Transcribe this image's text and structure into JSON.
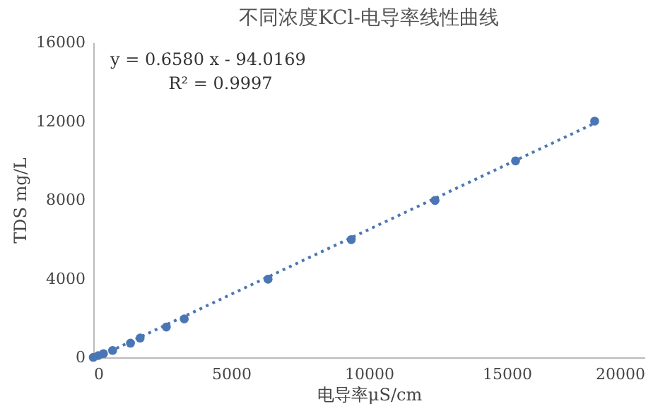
{
  "chart_data": {
    "type": "scatter",
    "title": "不同浓度KCl-电导率线性曲线",
    "xlabel": "电导率μS/cm",
    "ylabel": "TDS mg/L",
    "x": [
      0,
      180,
      370,
      700,
      1350,
      1700,
      2650,
      3300,
      6340,
      9360,
      12400,
      15320,
      18190
    ],
    "series": [
      {
        "color": "#4a76b5",
        "marker": "circle",
        "values": [
          0,
          90,
          190,
          350,
          720,
          980,
          1540,
          1950,
          3970,
          5980,
          7970,
          9980,
          12000
        ]
      },
      {
        "type": "line",
        "color": "#4a76b5",
        "x": [
          143,
          18200
        ],
        "values": [
          0,
          11900
        ],
        "line_style": "dotted"
      }
    ],
    "xlim": [
      0,
      20000
    ],
    "xticks": [
      0,
      5000,
      10000,
      15000,
      20000
    ],
    "ylim": [
      0,
      16000
    ],
    "yticks": [
      0,
      4000,
      8000,
      12000,
      16000
    ],
    "annotations": [
      "y = 0.6580 x - 94.0169",
      "R² = 0.9997"
    ]
  }
}
